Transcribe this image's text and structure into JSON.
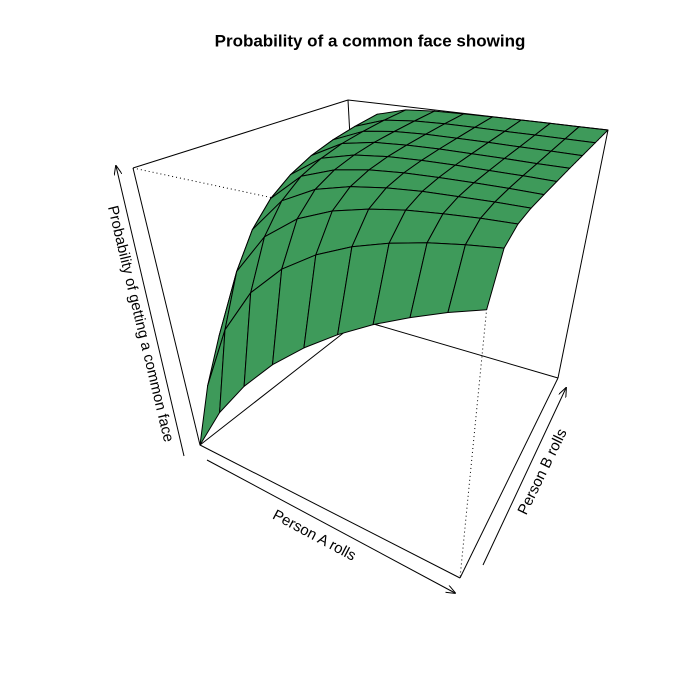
{
  "chart_data": {
    "type": "surface",
    "title": "Probability of a common face showing",
    "xlabel": "Person A rolls",
    "ylabel": "Person B rolls",
    "zlabel": "Probability of getting a common face",
    "color": "#3e9a5a",
    "x": [
      1,
      2,
      3,
      4,
      5,
      6,
      7,
      8,
      9,
      10
    ],
    "y": [
      1,
      2,
      3,
      4,
      5,
      6,
      7,
      8,
      9,
      10
    ],
    "zlim": [
      0.167,
      1
    ],
    "z": [
      [
        0.167,
        0.306,
        0.421,
        0.518,
        0.598,
        0.665,
        0.721,
        0.767,
        0.806,
        0.838
      ],
      [
        0.306,
        0.514,
        0.657,
        0.755,
        0.823,
        0.871,
        0.905,
        0.929,
        0.946,
        0.959
      ],
      [
        0.421,
        0.657,
        0.791,
        0.87,
        0.917,
        0.945,
        0.964,
        0.975,
        0.983,
        0.988
      ],
      [
        0.518,
        0.755,
        0.87,
        0.928,
        0.958,
        0.975,
        0.985,
        0.99,
        0.994,
        0.996
      ],
      [
        0.598,
        0.823,
        0.917,
        0.958,
        0.978,
        0.988,
        0.993,
        0.996,
        0.998,
        0.998
      ],
      [
        0.665,
        0.871,
        0.945,
        0.975,
        0.988,
        0.994,
        0.997,
        0.998,
        0.999,
        0.999
      ],
      [
        0.721,
        0.905,
        0.964,
        0.985,
        0.993,
        0.997,
        0.998,
        0.999,
        0.999,
        1
      ],
      [
        0.767,
        0.929,
        0.975,
        0.99,
        0.996,
        0.998,
        0.999,
        0.999,
        1,
        1
      ],
      [
        0.806,
        0.946,
        0.983,
        0.994,
        0.998,
        0.999,
        0.999,
        1,
        1,
        1
      ],
      [
        0.838,
        0.959,
        0.988,
        0.996,
        0.998,
        0.999,
        1,
        1,
        1,
        1
      ]
    ]
  }
}
